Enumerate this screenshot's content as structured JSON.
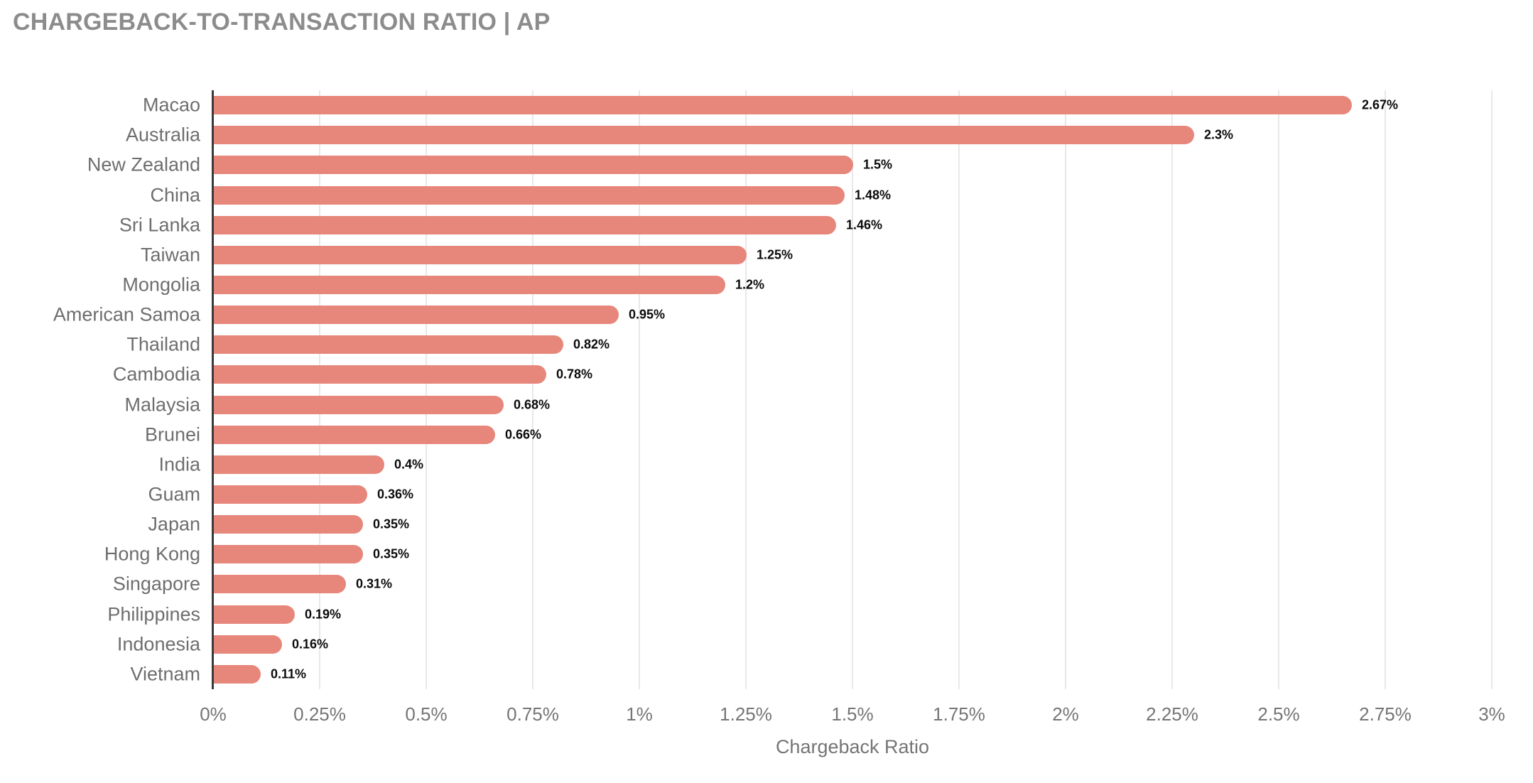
{
  "header": {
    "title": "CHARGEBACK-TO-TRANSACTION RATIO | AP"
  },
  "colors": {
    "bar": "#E7867B",
    "title_text": "#8C8C8C",
    "category_text": "#6E6E6E",
    "tick_text": "#757575",
    "value_text": "#0A0A0A",
    "gridline": "#E8E8E8",
    "axis_line": "#3A3A3A",
    "background": "#FFFFFF"
  },
  "chart_data": {
    "type": "bar",
    "orientation": "horizontal",
    "title": "CHARGEBACK-TO-TRANSACTION RATIO | AP",
    "xlabel": "Chargeback Ratio",
    "ylabel": "",
    "xlim": [
      0,
      3
    ],
    "grid": "vertical",
    "legend": "none",
    "categories": [
      "Macao",
      "Australia",
      "New Zealand",
      "China",
      "Sri Lanka",
      "Taiwan",
      "Mongolia",
      "American Samoa",
      "Thailand",
      "Cambodia",
      "Malaysia",
      "Brunei",
      "India",
      "Guam",
      "Japan",
      "Hong Kong",
      "Singapore",
      "Philippines",
      "Indonesia",
      "Vietnam"
    ],
    "values": [
      2.67,
      2.3,
      1.5,
      1.48,
      1.46,
      1.25,
      1.2,
      0.95,
      0.82,
      0.78,
      0.68,
      0.66,
      0.4,
      0.36,
      0.35,
      0.35,
      0.31,
      0.19,
      0.16,
      0.11
    ],
    "value_labels": [
      "2.67%",
      "2.3%",
      "1.5%",
      "1.48%",
      "1.46%",
      "1.25%",
      "1.2%",
      "0.95%",
      "0.82%",
      "0.78%",
      "0.68%",
      "0.66%",
      "0.4%",
      "0.36%",
      "0.35%",
      "0.35%",
      "0.31%",
      "0.19%",
      "0.16%",
      "0.11%"
    ],
    "x_ticks": [
      "0%",
      "0.25%",
      "0.5%",
      "0.75%",
      "1%",
      "1.25%",
      "1.5%",
      "1.75%",
      "2%",
      "2.25%",
      "2.5%",
      "2.75%",
      "3%"
    ],
    "x_tick_values": [
      0,
      0.25,
      0.5,
      0.75,
      1,
      1.25,
      1.5,
      1.75,
      2,
      2.25,
      2.5,
      2.75,
      3
    ]
  }
}
